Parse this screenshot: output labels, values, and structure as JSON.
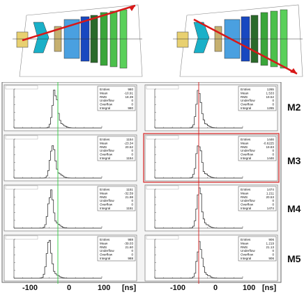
{
  "rows": [
    "M2",
    "M3",
    "M4",
    "M5"
  ],
  "x_ticks": [
    "-100",
    "0",
    "100"
  ],
  "x_unit": "[ns]",
  "stats_labels": [
    "Entries",
    "Mean",
    "RMS",
    "Underflow",
    "Overflow",
    "Integral"
  ],
  "colors": {
    "left_marker": "#2ecc40",
    "right_marker": "#d62020",
    "hist": "#333333",
    "highlight": "#d62020"
  },
  "chart_data": [
    {
      "type": "histogram",
      "column": "left",
      "station": "M2",
      "peak_x": -10,
      "xlim": [
        -150,
        150
      ],
      "stats": {
        "Entries": "980",
        "Mean": "-10.91",
        "RMS": "18.39",
        "Underflow": "0",
        "Overflow": "0",
        "Integral": "980"
      }
    },
    {
      "type": "histogram",
      "column": "left",
      "station": "M3",
      "peak_x": -18,
      "xlim": [
        -150,
        150
      ],
      "stats": {
        "Entries": "1154",
        "Mean": "-23.34",
        "RMS": "20.52",
        "Underflow": "0",
        "Overflow": "0",
        "Integral": "1154"
      }
    },
    {
      "type": "histogram",
      "column": "left",
      "station": "M4",
      "peak_x": -25,
      "xlim": [
        -150,
        150
      ],
      "stats": {
        "Entries": "1151",
        "Mean": "-32.59",
        "RMS": "21.98",
        "Underflow": "0",
        "Overflow": "0",
        "Integral": "1151"
      }
    },
    {
      "type": "histogram",
      "column": "left",
      "station": "M5",
      "peak_x": -30,
      "xlim": [
        -150,
        150
      ],
      "stats": {
        "Entries": "988",
        "Mean": "-39.03",
        "RMS": "21.60",
        "Underflow": "0",
        "Overflow": "0",
        "Integral": "988"
      }
    },
    {
      "type": "histogram",
      "column": "right",
      "station": "M2",
      "peak_x": 0,
      "xlim": [
        -150,
        150
      ],
      "stats": {
        "Entries": "1265",
        "Mean": "1.533",
        "RMS": "19.52",
        "Underflow": "0",
        "Overflow": "0",
        "Integral": "1265"
      }
    },
    {
      "type": "histogram",
      "column": "right",
      "station": "M3",
      "peak_x": 0,
      "xlim": [
        -150,
        150
      ],
      "highlight": true,
      "stats": {
        "Entries": "1446",
        "Mean": "-0.6225",
        "RMS": "19.83",
        "Underflow": "0",
        "Overflow": "0",
        "Integral": "1446"
      }
    },
    {
      "type": "histogram",
      "column": "right",
      "station": "M4",
      "peak_x": 2,
      "xlim": [
        -150,
        150
      ],
      "stats": {
        "Entries": "1474",
        "Mean": "1.211",
        "RMS": "20.53",
        "Underflow": "0",
        "Overflow": "0",
        "Integral": "1474"
      }
    },
    {
      "type": "histogram",
      "column": "right",
      "station": "M5",
      "peak_x": 3,
      "xlim": [
        -150,
        150
      ],
      "stats": {
        "Entries": "906",
        "Mean": "1.219",
        "RMS": "21.13",
        "Underflow": "0",
        "Overflow": "0",
        "Integral": "906"
      }
    }
  ]
}
